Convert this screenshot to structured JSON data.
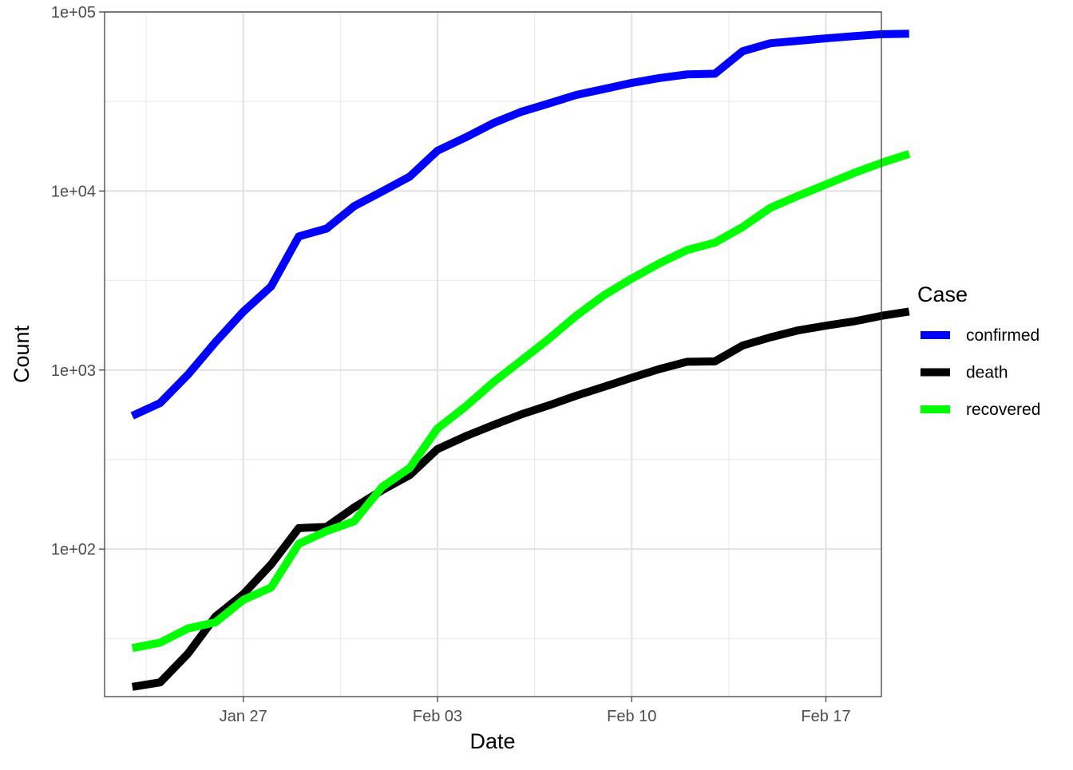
{
  "chart_data": {
    "type": "line",
    "xlabel": "Date",
    "ylabel": "Count",
    "y_scale": "log10",
    "ylim": [
      15,
      100000
    ],
    "xlim": [
      "2020-01-22",
      "2020-02-19"
    ],
    "y_ticks": [
      {
        "value": 100,
        "label": "1e+02"
      },
      {
        "value": 1000,
        "label": "1e+03"
      },
      {
        "value": 10000,
        "label": "1e+04"
      },
      {
        "value": 100000,
        "label": "1e+05"
      }
    ],
    "x_ticks": [
      {
        "value": "2020-01-27",
        "label": "Jan 27"
      },
      {
        "value": "2020-02-03",
        "label": "Feb 03"
      },
      {
        "value": "2020-02-10",
        "label": "Feb 10"
      },
      {
        "value": "2020-02-17",
        "label": "Feb 17"
      }
    ],
    "grid": true,
    "legend": {
      "title": "Case",
      "position": "right"
    },
    "x": [
      "2020-01-23",
      "2020-01-24",
      "2020-01-25",
      "2020-01-26",
      "2020-01-27",
      "2020-01-28",
      "2020-01-29",
      "2020-01-30",
      "2020-01-31",
      "2020-02-01",
      "2020-02-02",
      "2020-02-03",
      "2020-02-04",
      "2020-02-05",
      "2020-02-06",
      "2020-02-07",
      "2020-02-08",
      "2020-02-09",
      "2020-02-10",
      "2020-02-11",
      "2020-02-12",
      "2020-02-13",
      "2020-02-14",
      "2020-02-15",
      "2020-02-16",
      "2020-02-17",
      "2020-02-18",
      "2020-02-19",
      "2020-02-20"
    ],
    "series": [
      {
        "name": "confirmed",
        "color": "#0000FF",
        "values": [
          555,
          654,
          941,
          1434,
          2118,
          2927,
          5578,
          6166,
          8234,
          9927,
          12038,
          16787,
          19881,
          23892,
          27635,
          30794,
          34391,
          37120,
          40150,
          42762,
          44802,
          45221,
          60368,
          66885,
          69030,
          71224,
          73258,
          75136,
          75639
        ]
      },
      {
        "name": "death",
        "color": "#000000",
        "values": [
          17,
          18,
          26,
          42,
          56,
          82,
          131,
          133,
          171,
          213,
          259,
          362,
          426,
          492,
          564,
          634,
          719,
          806,
          906,
          1013,
          1113,
          1118,
          1371,
          1523,
          1666,
          1770,
          1868,
          2007,
          2122
        ]
      },
      {
        "name": "recovered",
        "color": "#00FF00",
        "values": [
          28,
          30,
          36,
          39,
          52,
          61,
          107,
          126,
          143,
          222,
          284,
          472,
          623,
          852,
          1124,
          1487,
          2011,
          2616,
          3244,
          3946,
          4683,
          5150,
          6295,
          8058,
          9395,
          10865,
          12583,
          14352,
          16121
        ]
      }
    ]
  }
}
